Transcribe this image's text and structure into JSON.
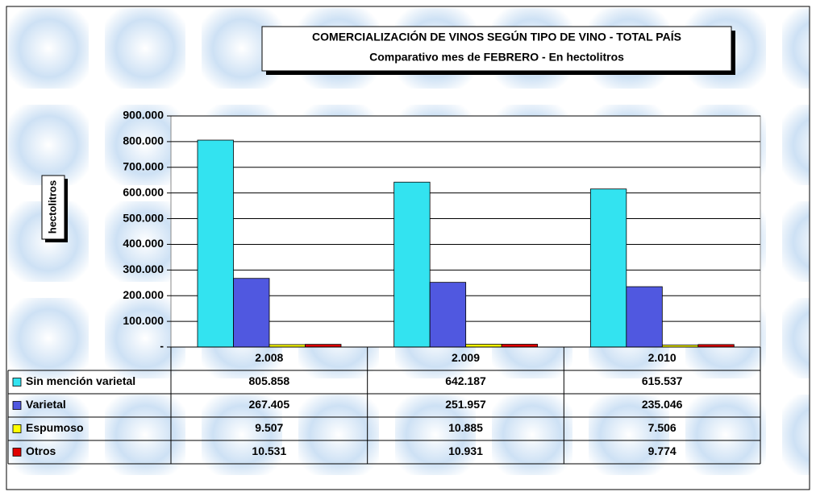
{
  "chart_data": {
    "type": "bar",
    "title": "COMERCIALIZACIÓN DE VINOS SEGÚN TIPO DE VINO - TOTAL PAÍS",
    "subtitle": "Comparativo mes de FEBRERO  - En hectolitros",
    "y_label": "hectolitros",
    "categories": [
      "2.008",
      "2.009",
      "2.010"
    ],
    "series": [
      {
        "name": "Sin mención varietal",
        "color": "#33e3f0",
        "values": [
          805858,
          642187,
          615537
        ],
        "value_labels": [
          "805.858",
          "642.187",
          "615.537"
        ]
      },
      {
        "name": "Varietal",
        "color": "#5058e0",
        "values": [
          267405,
          251957,
          235046
        ],
        "value_labels": [
          "267.405",
          "251.957",
          "235.046"
        ]
      },
      {
        "name": "Espumoso",
        "color": "#ffff00",
        "values": [
          9507,
          10885,
          7506
        ],
        "value_labels": [
          "9.507",
          "10.885",
          "7.506"
        ]
      },
      {
        "name": "Otros",
        "color": "#e00000",
        "values": [
          10531,
          10931,
          9774
        ],
        "value_labels": [
          "10.531",
          "10.931",
          "9.774"
        ]
      }
    ],
    "ylim": [
      0,
      900000
    ],
    "yticks": [
      {
        "value": 0,
        "label": "-"
      },
      {
        "value": 100000,
        "label": "100.000"
      },
      {
        "value": 200000,
        "label": "200.000"
      },
      {
        "value": 300000,
        "label": "300.000"
      },
      {
        "value": 400000,
        "label": "400.000"
      },
      {
        "value": 500000,
        "label": "500.000"
      },
      {
        "value": 600000,
        "label": "600.000"
      },
      {
        "value": 700000,
        "label": "700.000"
      },
      {
        "value": 800000,
        "label": "800.000"
      },
      {
        "value": 900000,
        "label": "900.000"
      }
    ],
    "grid": true
  }
}
